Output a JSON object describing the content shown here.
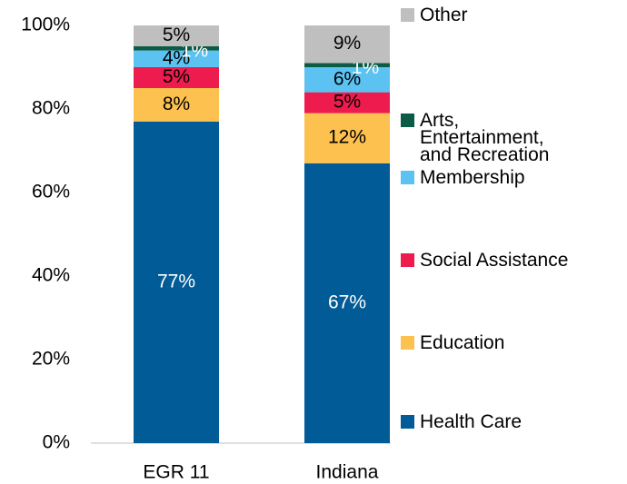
{
  "chart_data": {
    "type": "stacked_bar",
    "categories": [
      "EGR 11",
      "Indiana"
    ],
    "series": [
      {
        "name": "Health Care",
        "color": "#005b96",
        "values": [
          77,
          67
        ],
        "value_labels": [
          "77%",
          "67%"
        ]
      },
      {
        "name": "Education",
        "color": "#fdc150",
        "values": [
          8,
          12
        ],
        "value_labels": [
          "8%",
          "12%"
        ]
      },
      {
        "name": "Social Assistance",
        "color": "#ee1c4e",
        "values": [
          5,
          5
        ],
        "value_labels": [
          "5%",
          "5%"
        ]
      },
      {
        "name": "Membership",
        "color": "#5bc2f2",
        "values": [
          4,
          6
        ],
        "value_labels": [
          "4%",
          "6%"
        ]
      },
      {
        "name": "Arts, Entertainment, and Recreation",
        "color": "#0b5c47",
        "values": [
          1,
          1
        ],
        "value_labels": [
          "1%",
          "1%"
        ]
      },
      {
        "name": "Other",
        "color": "#bfbfbf",
        "values": [
          5,
          9
        ],
        "value_labels": [
          "5%",
          "9%"
        ]
      }
    ],
    "ylim": [
      0,
      100
    ],
    "yticks": [
      {
        "value": 0,
        "label": "0%"
      },
      {
        "value": 20,
        "label": "20%"
      },
      {
        "value": 40,
        "label": "40%"
      },
      {
        "value": 60,
        "label": "60%"
      },
      {
        "value": 80,
        "label": "80%"
      },
      {
        "value": 100,
        "label": "100%"
      }
    ],
    "legend": "right"
  }
}
